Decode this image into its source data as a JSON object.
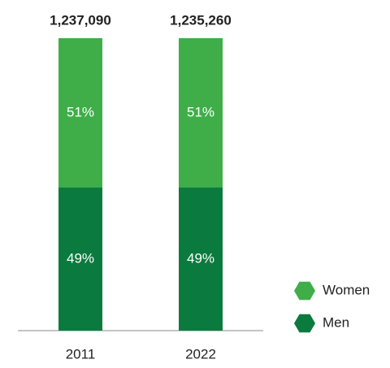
{
  "chart_data": {
    "type": "stacked_bar",
    "categories": [
      "2011",
      "2022"
    ],
    "totals": {
      "values": [
        1237090,
        1235260
      ],
      "value_labels": [
        "1,237,090",
        "1,235,260"
      ]
    },
    "series": [
      {
        "name": "Men",
        "color": "#0b7a3e",
        "values": [
          49,
          49
        ],
        "value_labels": [
          "49%",
          "49%"
        ]
      },
      {
        "name": "Women",
        "color": "#3fae49",
        "values": [
          51,
          51
        ],
        "value_labels": [
          "51%",
          "51%"
        ]
      }
    ],
    "legend": "lower right"
  }
}
